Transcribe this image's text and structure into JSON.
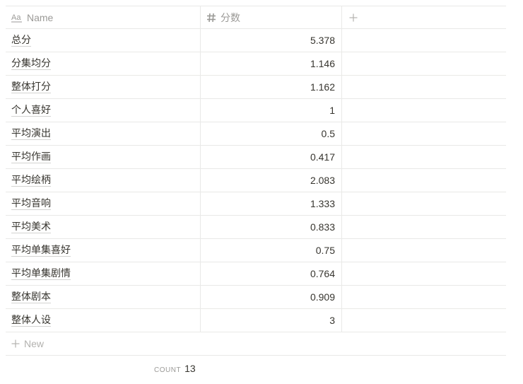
{
  "table": {
    "columns": {
      "name": {
        "label": "Name",
        "icon": "text-property-icon"
      },
      "score": {
        "label": "分数",
        "icon": "number-property-icon"
      },
      "add": {
        "icon": "plus-icon"
      }
    },
    "rows": [
      {
        "name": "总分",
        "score": "5.378"
      },
      {
        "name": "分集均分",
        "score": "1.146"
      },
      {
        "name": "整体打分",
        "score": "1.162"
      },
      {
        "name": "个人喜好",
        "score": "1"
      },
      {
        "name": "平均演出",
        "score": "0.5"
      },
      {
        "name": "平均作画",
        "score": "0.417"
      },
      {
        "name": "平均绘柄",
        "score": "2.083"
      },
      {
        "name": "平均音响",
        "score": "1.333"
      },
      {
        "name": "平均美术",
        "score": "0.833"
      },
      {
        "name": "平均单集喜好",
        "score": "0.75"
      },
      {
        "name": "平均单集剧情",
        "score": "0.764"
      },
      {
        "name": "整体剧本",
        "score": "0.909"
      },
      {
        "name": "整体人设",
        "score": "3"
      }
    ],
    "new_row_label": "New",
    "footer": {
      "count_label": "COUNT",
      "count_value": "13"
    }
  },
  "colors": {
    "text": "#37352f",
    "muted": "#9b9a97",
    "border": "#e9e9e7"
  }
}
